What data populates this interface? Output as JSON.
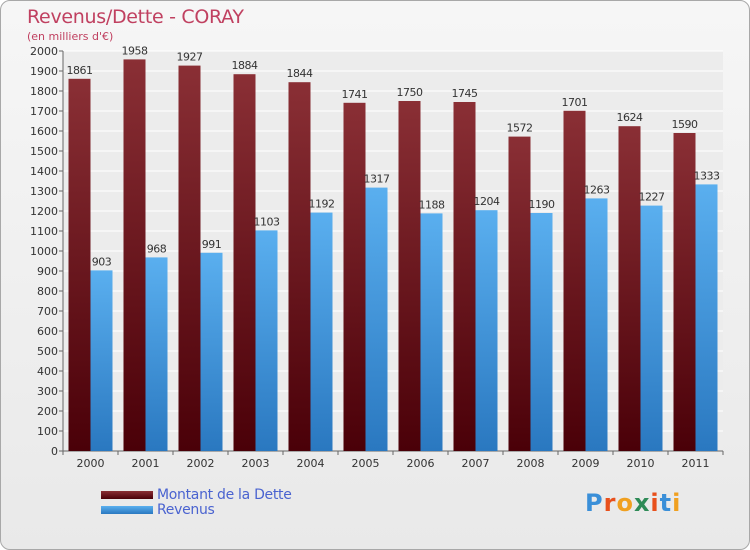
{
  "title": "Revenus/Dette - CORAY",
  "subtitle": "(en milliers d'€)",
  "logo": {
    "text": "Proxiti",
    "colors": [
      "#3a8fd8",
      "#e8501c",
      "#f0a020",
      "#2e8b57",
      "#e8501c",
      "#3a8fd8",
      "#f0a020"
    ]
  },
  "chart_data": {
    "type": "bar",
    "categories": [
      "2000",
      "2001",
      "2002",
      "2003",
      "2004",
      "2005",
      "2006",
      "2007",
      "2008",
      "2009",
      "2010",
      "2011"
    ],
    "series": [
      {
        "name": "Montant de la Dette",
        "color": "#7a1e26",
        "values": [
          1861,
          1958,
          1927,
          1884,
          1844,
          1741,
          1750,
          1745,
          1572,
          1701,
          1624,
          1590
        ]
      },
      {
        "name": "Revenus",
        "color": "#4aa3e8",
        "values": [
          903,
          968,
          991,
          1103,
          1192,
          1317,
          1188,
          1204,
          1190,
          1263,
          1227,
          1333
        ]
      }
    ],
    "ylim": [
      0,
      2000
    ],
    "yticks": [
      0,
      100,
      200,
      300,
      400,
      500,
      600,
      700,
      800,
      900,
      1000,
      1100,
      1200,
      1300,
      1400,
      1500,
      1600,
      1700,
      1800,
      1900,
      2000
    ],
    "grid": true,
    "legend_position": "bottom-left"
  }
}
